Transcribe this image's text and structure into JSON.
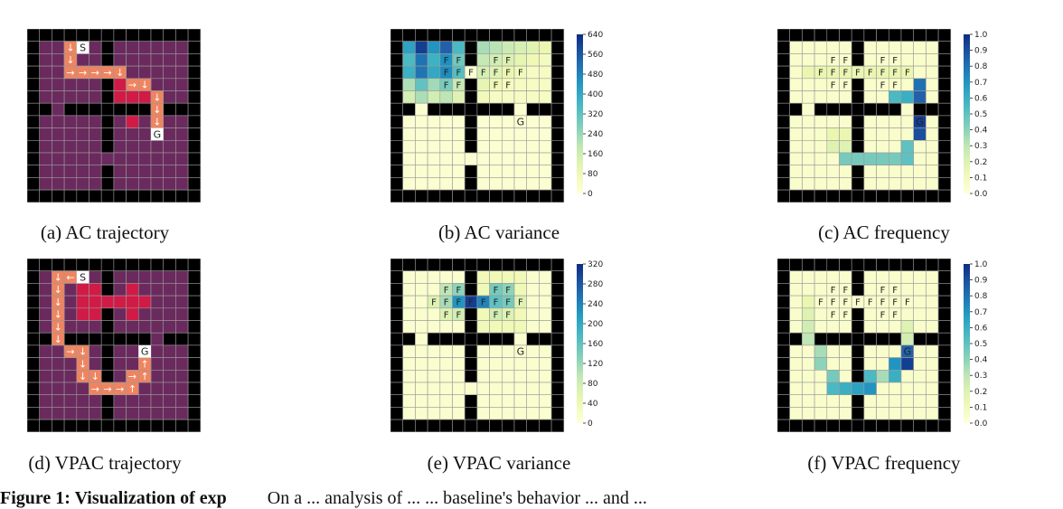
{
  "captions": {
    "a": "(a) AC trajectory",
    "b": "(b) AC variance",
    "c": "(c) AC frequency",
    "d": "(d) VPAC trajectory",
    "e": "(e) VPAC variance",
    "f": "(f) VPAC frequency"
  },
  "markers": {
    "start": "S",
    "goal": "G",
    "frontier": "F"
  },
  "colorbars": {
    "ac_variance": [
      "640",
      "560",
      "480",
      "400",
      "320",
      "240",
      "160",
      "80",
      "0"
    ],
    "ac_frequency": [
      "1.0",
      "0.9",
      "0.8",
      "0.7",
      "0.6",
      "0.5",
      "0.4",
      "0.3",
      "0.2",
      "0.1",
      "0.0"
    ],
    "vpac_variance": [
      "320",
      "280",
      "240",
      "200",
      "160",
      "120",
      "80",
      "40",
      "0"
    ],
    "vpac_frequency": [
      "1.0",
      "0.9",
      "0.8",
      "0.7",
      "0.6",
      "0.5",
      "0.4",
      "0.3",
      "0.2",
      "0.1",
      "0.0"
    ]
  },
  "colors": {
    "wall": "#000000",
    "floor_dark": "#6b2a5e",
    "visited_red": "#d01b47",
    "path_orange": "#ee8460",
    "grid_line": "#9a9a9a",
    "low_yellow": "#fbfdcd",
    "high_blue": "#1f2f86"
  },
  "figure_caption": {
    "label": "Figure 1:  Visualization of exp",
    "rest": "On a  ...   analysis of ...   ... baseline's behavior ...   and ..."
  }
}
